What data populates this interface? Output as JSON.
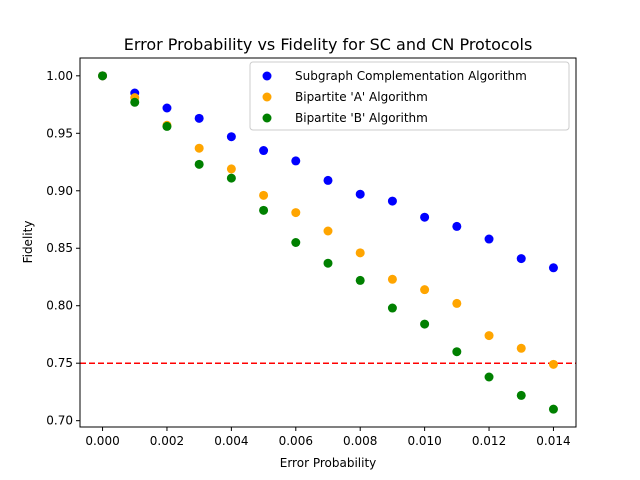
{
  "chart_data": {
    "type": "scatter",
    "title": "Error Probability vs Fidelity for SC and CN Protocols",
    "xlabel": "Error Probability",
    "ylabel": "Fidelity",
    "xlim": [
      -0.0007,
      0.0147
    ],
    "ylim": [
      0.6945,
      1.0155
    ],
    "xticks": [
      0.0,
      0.002,
      0.004,
      0.006,
      0.008,
      0.01,
      0.012,
      0.014
    ],
    "xtick_labels": [
      "0.000",
      "0.002",
      "0.004",
      "0.006",
      "0.008",
      "0.010",
      "0.012",
      "0.014"
    ],
    "yticks": [
      0.7,
      0.75,
      0.8,
      0.85,
      0.9,
      0.95,
      1.0
    ],
    "ytick_labels": [
      "0.70",
      "0.75",
      "0.80",
      "0.85",
      "0.90",
      "0.95",
      "1.00"
    ],
    "legend_position": "top-right",
    "x": [
      0.0,
      0.001,
      0.002,
      0.003,
      0.004,
      0.005,
      0.006,
      0.007,
      0.008,
      0.009,
      0.01,
      0.011,
      0.012,
      0.013,
      0.014
    ],
    "series": [
      {
        "name": "Subgraph Complementation Algorithm",
        "color": "#0000ff",
        "values": [
          1.0,
          0.985,
          0.972,
          0.963,
          0.947,
          0.935,
          0.926,
          0.909,
          0.897,
          0.891,
          0.877,
          0.869,
          0.858,
          0.841,
          0.833
        ]
      },
      {
        "name": "Bipartite 'A' Algorithm",
        "color": "#ffa500",
        "values": [
          1.0,
          0.981,
          0.957,
          0.937,
          0.919,
          0.896,
          0.881,
          0.865,
          0.846,
          0.823,
          0.814,
          0.802,
          0.774,
          0.763,
          0.749
        ]
      },
      {
        "name": "Bipartite 'B' Algorithm",
        "color": "#008000",
        "values": [
          1.0,
          0.977,
          0.956,
          0.923,
          0.911,
          0.883,
          0.855,
          0.837,
          0.822,
          0.798,
          0.784,
          0.76,
          0.738,
          0.722,
          0.71
        ]
      }
    ],
    "threshold_line": {
      "y": 0.75,
      "color": "#ff0000",
      "style": "dashed"
    }
  }
}
